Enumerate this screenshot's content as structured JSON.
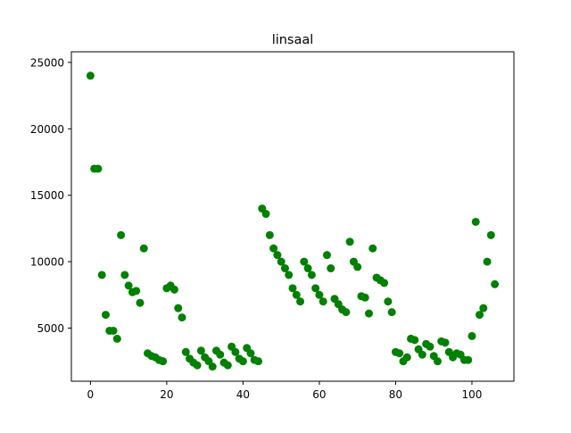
{
  "chart_data": {
    "type": "scatter",
    "title": "linsaal",
    "xlabel": "",
    "ylabel": "",
    "xlim": [
      -5,
      111
    ],
    "ylim": [
      1000,
      25800
    ],
    "xticks": [
      0,
      20,
      40,
      60,
      80,
      100
    ],
    "yticks": [
      5000,
      10000,
      15000,
      20000,
      25000
    ],
    "grid": false,
    "marker_color": "#008000",
    "series": [
      {
        "x": [
          0,
          1,
          2,
          3,
          4,
          5,
          6,
          7,
          8,
          9,
          10,
          11,
          12,
          13,
          14,
          15,
          16,
          17,
          18,
          19,
          20,
          21,
          22,
          23,
          24,
          25,
          26,
          27,
          28,
          29,
          30,
          31,
          32,
          33,
          34,
          35,
          36,
          37,
          38,
          39,
          40,
          41,
          42,
          43,
          44,
          45,
          46,
          47,
          48,
          49,
          50,
          51,
          52,
          53,
          54,
          55,
          56,
          57,
          58,
          59,
          60,
          61,
          62,
          63,
          64,
          65,
          66,
          67,
          68,
          69,
          70,
          71,
          72,
          73,
          74,
          75,
          76,
          77,
          78,
          79,
          80,
          81,
          82,
          83,
          84,
          85,
          86,
          87,
          88,
          89,
          90,
          91,
          92,
          93,
          94,
          95,
          96,
          97,
          98,
          99,
          100,
          101,
          102,
          103,
          104,
          105,
          106
        ],
        "y": [
          24000,
          17000,
          17000,
          9000,
          6000,
          4800,
          4800,
          4200,
          12000,
          9000,
          8200,
          7700,
          7800,
          6900,
          11000,
          3100,
          2900,
          2800,
          2600,
          2500,
          8000,
          8200,
          7900,
          6500,
          5800,
          3200,
          2700,
          2400,
          2200,
          3300,
          2800,
          2500,
          2100,
          3300,
          3000,
          2400,
          2200,
          3600,
          3200,
          2700,
          2500,
          3500,
          3100,
          2600,
          2500,
          14000,
          13600,
          12000,
          11000,
          10500,
          10000,
          9500,
          9000,
          8000,
          7500,
          7000,
          10000,
          9500,
          9000,
          8000,
          7500,
          7000,
          10500,
          9500,
          7200,
          6800,
          6400,
          6200,
          11500,
          10000,
          9600,
          7400,
          7300,
          6100,
          11000,
          8800,
          8600,
          8400,
          7000,
          6200,
          3200,
          3100,
          2500,
          2800,
          4200,
          4100,
          3400,
          3000,
          3800,
          3600,
          2900,
          2500,
          4000,
          3900,
          3200,
          2800,
          3100,
          3000,
          2600,
          2600,
          4400,
          13000,
          6000,
          6500,
          10000,
          12000,
          8300
        ]
      }
    ]
  }
}
